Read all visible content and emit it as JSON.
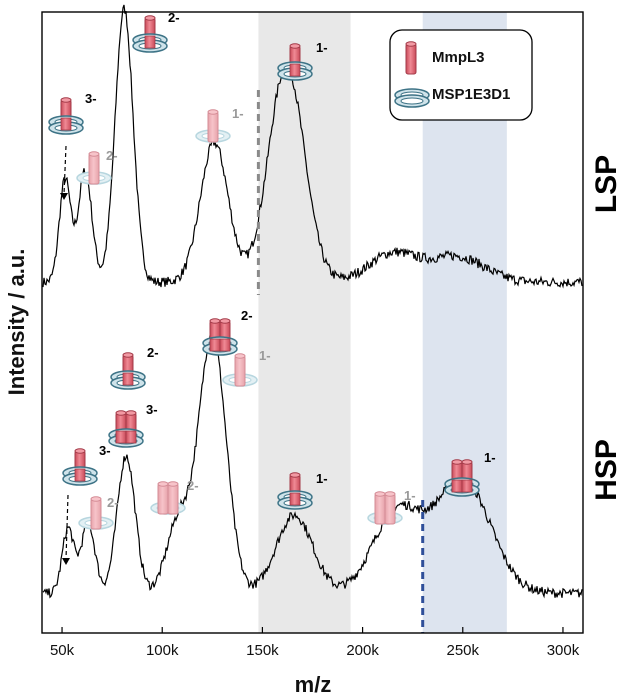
{
  "chart_data": {
    "type": "line",
    "xlabel": "m/z",
    "ylabel": "Intensity / a.u.",
    "xlim": [
      40000,
      310000
    ],
    "x_ticks": [
      50000,
      100000,
      150000,
      200000,
      250000,
      300000
    ],
    "x_tick_labels": [
      "50k",
      "100k",
      "150k",
      "200k",
      "250k",
      "300k"
    ],
    "panels": [
      {
        "label": "LSP",
        "baseline": 0.08,
        "peaks": [
          {
            "x": 51500,
            "height": 0.4
          },
          {
            "x": 61500,
            "height": 0.43
          },
          {
            "x": 81000,
            "height": 1.0
          },
          {
            "x": 126000,
            "height": 0.53
          },
          {
            "x": 162000,
            "height": 0.8
          },
          {
            "x": 215000,
            "height": 0.14
          },
          {
            "x": 247000,
            "height": 0.13
          }
        ],
        "annotations": [
          {
            "charge": "3-",
            "species": "MSP1E3D1 + MmpL3",
            "x": 51500
          },
          {
            "charge": "2-",
            "species": "MmpL3 (ring unfilled)",
            "x": 61500
          },
          {
            "charge": "2-",
            "species": "MSP1E3D1 + MmpL3",
            "x": 81000
          },
          {
            "charge": "1-",
            "species": "MmpL3 (ring unfilled)",
            "x": 126000
          },
          {
            "charge": "1-",
            "species": "MSP1E3D1 + MmpL3",
            "x": 162000
          }
        ]
      },
      {
        "label": "HSP",
        "baseline": 0.08,
        "peaks": [
          {
            "x": 53000,
            "height": 0.28
          },
          {
            "x": 63000,
            "height": 0.3
          },
          {
            "x": 82000,
            "height": 0.55
          },
          {
            "x": 108000,
            "height": 0.3
          },
          {
            "x": 125000,
            "height": 1.0
          },
          {
            "x": 166000,
            "height": 0.33
          },
          {
            "x": 217000,
            "height": 0.34
          },
          {
            "x": 250000,
            "height": 0.46
          }
        ],
        "annotations": [
          {
            "charge": "3-",
            "species": "MSP1E3D1 + MmpL3",
            "x": 53000
          },
          {
            "charge": "2-",
            "species": "MmpL3 (ring unfilled)",
            "x": 63000
          },
          {
            "charge": "3-",
            "species": "MSP1E3D1 + 2 MmpL3",
            "x": 82000
          },
          {
            "charge": "2-",
            "species": "MSP1E3D1 + MmpL3",
            "x": 82000
          },
          {
            "charge": "2-",
            "species": "2 MmpL3 (ring unfilled)",
            "x": 108000
          },
          {
            "charge": "2-",
            "species": "MSP1E3D1 + 2 MmpL3",
            "x": 125000
          },
          {
            "charge": "1-",
            "species": "MmpL3 (ring unfilled)",
            "x": 125000
          },
          {
            "charge": "1-",
            "species": "MSP1E3D1 + MmpL3",
            "x": 166000
          },
          {
            "charge": "1-",
            "species": "2 MmpL3 (ring unfilled)",
            "x": 217000
          },
          {
            "charge": "1-",
            "species": "MSP1E3D1 + 2 MmpL3",
            "x": 250000
          }
        ]
      }
    ],
    "shaded_regions": [
      {
        "x_start": 148000,
        "x_end": 194000,
        "color": "#e8e8e8"
      },
      {
        "x_start": 230000,
        "x_end": 272000,
        "color": "#dde4ef"
      }
    ],
    "dashed_markers": [
      {
        "panel": "LSP",
        "x": 148000,
        "color": "#8a8a8a"
      },
      {
        "panel": "HSP",
        "x": 230000,
        "color": "#2f4f99"
      }
    ],
    "legend": {
      "position": "top-right",
      "entries": [
        {
          "label": "MmpL3",
          "icon": "cylinder-icon"
        },
        {
          "label": "MSP1E3D1",
          "icon": "ring-icon"
        }
      ]
    },
    "grid": false
  },
  "colors": {
    "line": "#000000",
    "mmpl3": "#e8707d",
    "mmpl3_faded": "#f1a4ad",
    "msp_ring": "#7fb3c3",
    "msp_ring_faded": "#b7d6df",
    "charge_dark": "#000000",
    "charge_faded": "#999999"
  }
}
